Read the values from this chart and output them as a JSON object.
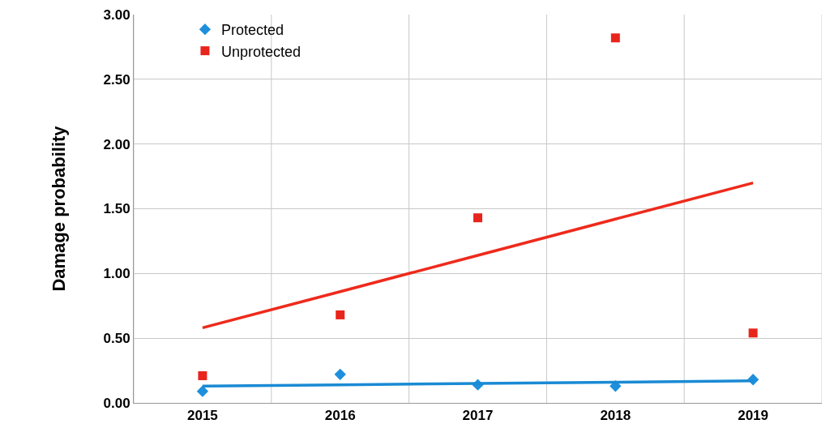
{
  "chart_data": {
    "type": "scatter",
    "ylabel": "Damage probability",
    "categories": [
      "2015",
      "2016",
      "2017",
      "2018",
      "2019"
    ],
    "series": [
      {
        "name": "Protected",
        "marker": "diamond",
        "color": "#1e8fdc",
        "values": [
          0.09,
          0.22,
          0.14,
          0.13,
          0.18
        ]
      },
      {
        "name": "Unprotected",
        "marker": "square",
        "color": "#e8251c",
        "values": [
          0.21,
          0.68,
          1.43,
          2.82,
          0.54
        ]
      },
      {
        "type": "line",
        "marker": "none",
        "color": "#ee2a1c",
        "values": [
          0.58,
          0.86,
          1.14,
          1.42,
          1.7
        ]
      },
      {
        "type": "line",
        "marker": "none",
        "color": "#1a8ad4",
        "values": [
          0.13,
          0.14,
          0.15,
          0.16,
          0.17
        ]
      }
    ],
    "ylim": [
      0,
      3
    ],
    "yticks": [
      {
        "value": 0,
        "label": "0.00"
      },
      {
        "value": 0.5,
        "label": "0.50"
      },
      {
        "value": 1,
        "label": "1.00"
      },
      {
        "value": 1.5,
        "label": "1.50"
      },
      {
        "value": 2,
        "label": "2.00"
      },
      {
        "value": 2.5,
        "label": "2.50"
      },
      {
        "value": 3,
        "label": "3.00"
      }
    ],
    "grid": true,
    "legend": "top left"
  }
}
